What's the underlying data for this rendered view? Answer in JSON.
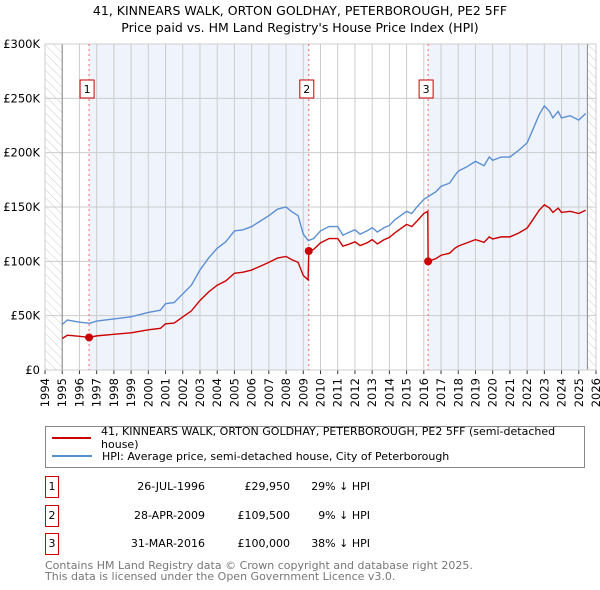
{
  "chart_data": {
    "type": "line",
    "title": "41, KINNEARS WALK, ORTON GOLDHAY, PETERBOROUGH, PE2 5FF",
    "subtitle": "Price paid vs. HM Land Registry's House Price Index (HPI)",
    "xlim": [
      1994,
      2026
    ],
    "ylim": [
      0,
      300000
    ],
    "x_ticks": [
      "1994",
      "1995",
      "1996",
      "1997",
      "1998",
      "1999",
      "2000",
      "2001",
      "2002",
      "2003",
      "2004",
      "2005",
      "2006",
      "2007",
      "2008",
      "2009",
      "2010",
      "2011",
      "2012",
      "2013",
      "2014",
      "2015",
      "2016",
      "2017",
      "2018",
      "2019",
      "2020",
      "2021",
      "2022",
      "2023",
      "2024",
      "2025",
      "2026"
    ],
    "y_ticks": [
      {
        "v": 0,
        "label": "£0"
      },
      {
        "v": 50000,
        "label": "£50K"
      },
      {
        "v": 100000,
        "label": "£100K"
      },
      {
        "v": 150000,
        "label": "£150K"
      },
      {
        "v": 200000,
        "label": "£200K"
      },
      {
        "v": 250000,
        "label": "£250K"
      },
      {
        "v": 300000,
        "label": "£300K"
      }
    ],
    "grid": true,
    "data_range": [
      1995,
      2025.5
    ],
    "series": [
      {
        "name": "41, KINNEARS WALK, ORTON GOLDHAY, PETERBOROUGH, PE2 5FF (semi-detached house)",
        "color": "#cc0000",
        "unit": "£K",
        "x": [
          1995,
          1995.3,
          1996,
          1996.56,
          1997,
          1998,
          1999,
          2000,
          2000.7,
          2001,
          2001.5,
          2002,
          2002.5,
          2003,
          2003.5,
          2004,
          2004.5,
          2005,
          2005.5,
          2006,
          2006.5,
          2007,
          2007.5,
          2008,
          2008.3,
          2008.7,
          2009,
          2009.28,
          2009.32,
          2009.6,
          2010,
          2010.5,
          2011,
          2011.3,
          2011.7,
          2012,
          2012.3,
          2012.7,
          2013,
          2013.3,
          2013.7,
          2014,
          2014.3,
          2015,
          2015.3,
          2015.6,
          2016,
          2016.23,
          2016.25,
          2016.7,
          2017,
          2017.5,
          2017.8,
          2018,
          2018.5,
          2019,
          2019.5,
          2019.8,
          2020,
          2020.5,
          2021,
          2021.5,
          2022,
          2022.3,
          2022.7,
          2023,
          2023.3,
          2023.5,
          2023.8,
          2024,
          2024.5,
          2025,
          2025.4
        ],
        "y": [
          29,
          32,
          31,
          29.95,
          31.4,
          32.8,
          34.2,
          37,
          38.3,
          42.5,
          43.2,
          48.8,
          54.4,
          64,
          71.8,
          78,
          82,
          89,
          90,
          92,
          95.5,
          99,
          103,
          104.5,
          101.8,
          99,
          87,
          83,
          109.5,
          111,
          117,
          121,
          121,
          114,
          116,
          118,
          114.5,
          117,
          120,
          116,
          120,
          122,
          126,
          134,
          132,
          137,
          144,
          146,
          100,
          102.5,
          105.6,
          107.5,
          112,
          114,
          117,
          120,
          117.5,
          122.5,
          120.6,
          122.5,
          122.5,
          126,
          130.6,
          137.5,
          147,
          152,
          149,
          145,
          149,
          145,
          146,
          144,
          147
        ]
      },
      {
        "name": "HPI: Average price, semi-detached house, City of Peterborough",
        "color": "#5b8fd4",
        "unit": "£K",
        "x": [
          1995,
          1995.3,
          1996,
          1996.6,
          1997,
          1998,
          1999,
          2000,
          2000.7,
          2001,
          2001.5,
          2002,
          2002.5,
          2003,
          2003.5,
          2004,
          2004.5,
          2005,
          2005.5,
          2006,
          2006.5,
          2007,
          2007.5,
          2008,
          2008.3,
          2008.7,
          2009,
          2009.3,
          2009.6,
          2010,
          2010.5,
          2011,
          2011.3,
          2011.7,
          2012,
          2012.3,
          2012.7,
          2013,
          2013.3,
          2013.7,
          2014,
          2014.3,
          2015,
          2015.3,
          2015.6,
          2016,
          2016.3,
          2016.7,
          2017,
          2017.5,
          2017.8,
          2018,
          2018.5,
          2019,
          2019.5,
          2019.8,
          2020,
          2020.5,
          2021,
          2021.5,
          2022,
          2022.3,
          2022.7,
          2023,
          2023.3,
          2023.5,
          2023.8,
          2024,
          2024.5,
          2025,
          2025.4
        ],
        "y": [
          42,
          46,
          44,
          43,
          45,
          47,
          49,
          53,
          55,
          61,
          62,
          70,
          78,
          92,
          103,
          112,
          118,
          128,
          129,
          132,
          137,
          142,
          148,
          150,
          146,
          142,
          125,
          119,
          121,
          128,
          132,
          132,
          124,
          127,
          129,
          125,
          128,
          131,
          127,
          131,
          133,
          138,
          146,
          144,
          150,
          157,
          160,
          164,
          169,
          172,
          179,
          183,
          187,
          192,
          188,
          196,
          193,
          196,
          196,
          202,
          209,
          220,
          235,
          243,
          238,
          232,
          238,
          232,
          234,
          230,
          236
        ]
      }
    ],
    "sales": [
      {
        "n": "1",
        "x": 1996.56,
        "date": "26-JUL-1996",
        "price": "£29,950",
        "hpi": "29% ↓ HPI",
        "value": 29950
      },
      {
        "n": "2",
        "x": 2009.32,
        "date": "28-APR-2009",
        "price": "£109,500",
        "hpi": "9% ↓ HPI",
        "value": 109500
      },
      {
        "n": "3",
        "x": 2016.25,
        "date": "31-MAR-2016",
        "price": "£100,000",
        "hpi": "38% ↓ HPI",
        "value": 100000
      }
    ]
  },
  "footer": {
    "line1": "Contains HM Land Registry data © Crown copyright and database right 2025.",
    "line2": "This data is licensed under the Open Government Licence v3.0."
  }
}
